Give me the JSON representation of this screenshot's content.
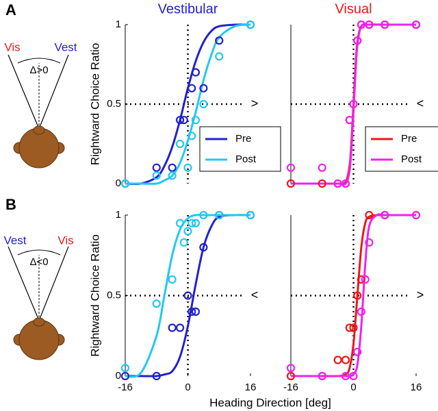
{
  "figure": {
    "xlabel": "Heading Direction [deg]",
    "diagrams": [
      {
        "panel": "A",
        "left": "Vis",
        "left_color": "#e8191a",
        "right": "Vest",
        "right_color": "#2222cc",
        "delta": "Δ>0"
      },
      {
        "panel": "B",
        "left": "Vest",
        "left_color": "#2222cc",
        "right": "Vis",
        "right_color": "#e8191a",
        "delta": "Δ<0"
      }
    ]
  },
  "chart_data": [
    {
      "type": "line",
      "title": "Vestibular",
      "title_color": "#2222cc",
      "ylabel": "Rightward Choice Ratio",
      "xlim": [
        -16,
        16
      ],
      "ylim": [
        0,
        1
      ],
      "yticks": [
        0,
        0.5,
        1
      ],
      "refx": 0,
      "refy": 0.5,
      "annotation": ">",
      "legend": "lower right",
      "fit_x": [
        -16,
        -12,
        -8,
        -6,
        -4,
        -2,
        0,
        2,
        4,
        6,
        8,
        12,
        16
      ],
      "series": [
        {
          "name": "Pre",
          "color": "#2222cc",
          "x": [
            -16,
            -8,
            -4,
            -2,
            -1,
            1,
            2,
            4,
            8,
            16
          ],
          "values": [
            0,
            0.1,
            0.1,
            0.4,
            0.4,
            0.6,
            0.7,
            0.6,
            0.9,
            1
          ],
          "fit": [
            0,
            0,
            0.04,
            0.11,
            0.23,
            0.4,
            0.6,
            0.77,
            0.89,
            0.96,
            0.99,
            1,
            1
          ]
        },
        {
          "name": "Post",
          "color": "#22c8f0",
          "x": [
            -16,
            -8,
            -4,
            -2,
            0,
            1,
            2,
            4,
            8,
            16
          ],
          "values": [
            0,
            0.05,
            0.05,
            0.25,
            0.1,
            0.3,
            0.4,
            0.5,
            0.8,
            1
          ],
          "fit": [
            0,
            0,
            0,
            0.02,
            0.05,
            0.13,
            0.27,
            0.45,
            0.65,
            0.81,
            0.92,
            0.99,
            1
          ]
        }
      ]
    },
    {
      "type": "line",
      "title": "Visual",
      "title_color": "#e8191a",
      "xlim": [
        -16,
        16
      ],
      "ylim": [
        0,
        1
      ],
      "refx": 0,
      "refy": 0.5,
      "annotation": "<",
      "legend": "lower right",
      "fit_x": [
        -16,
        -8,
        -4,
        -2,
        -1,
        -0.5,
        0,
        0.5,
        1,
        2,
        4,
        8,
        16
      ],
      "series": [
        {
          "name": "Pre",
          "color": "#e8191a",
          "x": [
            -16,
            -8,
            -4,
            -2,
            -1,
            1,
            2,
            4,
            8,
            16
          ],
          "values": [
            0,
            0,
            0,
            0,
            0.4,
            0.9,
            1,
            1,
            1,
            1
          ],
          "fit": [
            0,
            0,
            0,
            0.01,
            0.11,
            0.27,
            0.5,
            0.73,
            0.89,
            0.99,
            1,
            1,
            1
          ]
        },
        {
          "name": "Post",
          "color": "#ee22ee",
          "x": [
            -16,
            -8,
            -4,
            -2,
            -1,
            0,
            1,
            2,
            4,
            8,
            16
          ],
          "values": [
            0.1,
            0.1,
            0,
            0,
            0.4,
            0.5,
            0.9,
            1,
            1,
            1,
            1
          ],
          "fit": [
            0,
            0,
            0,
            0,
            0.08,
            0.23,
            0.45,
            0.69,
            0.87,
            0.99,
            1,
            1,
            1
          ]
        }
      ]
    },
    {
      "type": "line",
      "ylabel": "Rightward Choice Ratio",
      "xlim": [
        -16,
        16
      ],
      "ylim": [
        0,
        1
      ],
      "xticks": [
        -16,
        0,
        16
      ],
      "yticks": [
        0,
        0.5,
        1
      ],
      "refx": 0,
      "refy": 0.5,
      "annotation": "<",
      "fit_x": [
        -16,
        -12,
        -8,
        -6,
        -4,
        -2,
        0,
        2,
        4,
        6,
        8,
        12,
        16
      ],
      "series": [
        {
          "name": "Pre",
          "color": "#2222cc",
          "x": [
            -16,
            -8,
            -4,
            -2,
            0,
            1,
            2,
            4,
            8,
            16
          ],
          "values": [
            0,
            0,
            0.3,
            0.3,
            0.5,
            0.4,
            0.4,
            0.8,
            1,
            1
          ],
          "fit": [
            0,
            0,
            0,
            0.01,
            0.03,
            0.12,
            0.31,
            0.57,
            0.8,
            0.93,
            0.99,
            1,
            1
          ]
        },
        {
          "name": "Post",
          "color": "#22c8f0",
          "x": [
            -16,
            -8,
            -4,
            -2,
            -1,
            0,
            1,
            2,
            4,
            8,
            16
          ],
          "values": [
            0.05,
            0.45,
            0.6,
            0.95,
            0.83,
            0.9,
            0.95,
            0.95,
            1,
            1,
            1
          ],
          "fit": [
            0,
            0.02,
            0.25,
            0.5,
            0.75,
            0.91,
            0.98,
            1,
            1,
            1,
            1,
            1,
            1
          ]
        }
      ]
    },
    {
      "type": "line",
      "xlim": [
        -16,
        16
      ],
      "ylim": [
        0,
        1
      ],
      "xticks": [
        -16,
        0,
        16
      ],
      "refx": 0,
      "refy": 0.5,
      "annotation": ">",
      "fit_x": [
        -16,
        -8,
        -4,
        -2,
        -1,
        0,
        1,
        2,
        3,
        4,
        6,
        8,
        16
      ],
      "series": [
        {
          "name": "Pre",
          "color": "#e8191a",
          "x": [
            -16,
            -8,
            -4,
            -2,
            -1,
            0,
            1,
            2,
            4,
            8
          ],
          "values": [
            0,
            0,
            0.1,
            0.1,
            0.3,
            0.3,
            0.5,
            0.6,
            1,
            1
          ],
          "fit": [
            0,
            0,
            0,
            0.01,
            0.05,
            0.2,
            0.5,
            0.8,
            0.95,
            0.99,
            1,
            1,
            1
          ]
        },
        {
          "name": "Post",
          "color": "#ee22ee",
          "x": [
            -16,
            -8,
            -2,
            0,
            1,
            2,
            3,
            4,
            8,
            16
          ],
          "values": [
            0.05,
            0,
            0,
            0,
            0.15,
            0.4,
            0.6,
            0.83,
            1,
            1
          ],
          "fit": [
            0,
            0,
            0,
            0,
            0,
            0.01,
            0.07,
            0.31,
            0.69,
            0.93,
            1,
            1,
            1
          ]
        }
      ]
    }
  ]
}
